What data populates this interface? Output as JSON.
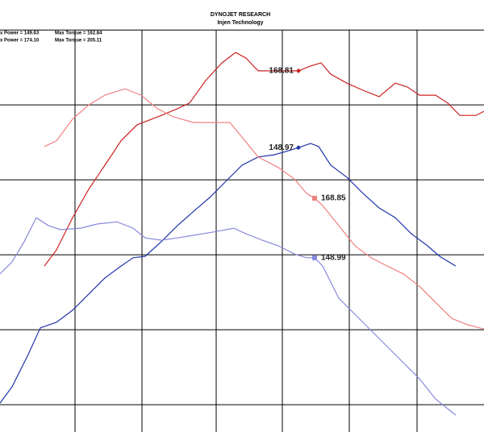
{
  "chart_data": {
    "type": "line",
    "title": "DYNOJET RESEARCH",
    "subtitle": "Injen Technology",
    "header_lines": [
      [
        "x Power = 149.63",
        "Max Torque = 162.84"
      ],
      [
        "x Power = 174.10",
        "Max Torque = 205.11"
      ]
    ],
    "xlim": [
      0,
      600
    ],
    "ylim": [
      72.7,
      188
    ],
    "xgrid": [
      93,
      176,
      268,
      350,
      433,
      517
    ],
    "ygrid": [
      80,
      100,
      120,
      140,
      160,
      180
    ],
    "series": [
      {
        "color": "#cc2222",
        "x": [
          55,
          70,
          90,
          110,
          130,
          150,
          170,
          200,
          220,
          235,
          255,
          275,
          292,
          305,
          320,
          345,
          370,
          385,
          398,
          410,
          430,
          450,
          470,
          490,
          505,
          520,
          540,
          555,
          570,
          590,
          600
        ],
        "values": [
          117.0,
          121.3,
          129.9,
          137.5,
          143.9,
          150.4,
          154.7,
          157.2,
          159.0,
          160.5,
          166.5,
          171.2,
          174.0,
          172.5,
          169.1,
          169.1,
          169.1,
          170.4,
          171.2,
          168.2,
          165.8,
          163.9,
          162.2,
          165.8,
          164.8,
          162.6,
          162.6,
          160.5,
          157.2,
          157.2,
          158.3
        ]
      },
      {
        "color": "#2233aa",
        "x": [
          0,
          15,
          35,
          50,
          70,
          90,
          110,
          130,
          150,
          165,
          180,
          200,
          220,
          240,
          260,
          280,
          300,
          320,
          340,
          355,
          370,
          385,
          395,
          410,
          430,
          450,
          470,
          490,
          510,
          530,
          545,
          565
        ],
        "values": [
          80.4,
          84.8,
          93.4,
          100.5,
          102.0,
          105.2,
          109.5,
          113.8,
          117.0,
          119.2,
          119.6,
          123.5,
          127.8,
          131.6,
          135.3,
          139.6,
          143.9,
          146.1,
          146.7,
          147.6,
          148.6,
          149.7,
          148.9,
          143.9,
          140.7,
          136.4,
          132.5,
          129.9,
          125.6,
          122.4,
          119.6,
          117.0
        ]
      },
      {
        "color": "#f08080",
        "x": [
          55,
          70,
          90,
          110,
          130,
          155,
          175,
          195,
          215,
          240,
          260,
          285,
          300,
          320,
          345,
          365,
          380,
          390,
          400,
          420,
          440,
          460,
          480,
          500,
          520,
          540,
          560,
          580,
          600
        ],
        "values": [
          148.9,
          150.4,
          156.2,
          160.0,
          162.6,
          164.3,
          162.6,
          159.0,
          156.8,
          155.3,
          155.3,
          155.3,
          151.4,
          146.1,
          143.3,
          140.2,
          136.4,
          135.1,
          133.1,
          127.8,
          122.4,
          119.2,
          117.0,
          114.9,
          111.6,
          107.3,
          103.0,
          101.3,
          100.2
        ]
      },
      {
        "color": "#8888dd",
        "x": [
          0,
          15,
          30,
          45,
          60,
          75,
          100,
          120,
          145,
          165,
          180,
          200,
          220,
          240,
          265,
          290,
          305,
          325,
          345,
          365,
          380,
          390,
          400,
          420,
          440,
          460,
          480,
          500,
          520,
          540,
          565
        ],
        "values": [
          114.9,
          118.1,
          123.5,
          129.9,
          127.8,
          126.7,
          127.1,
          128.2,
          128.8,
          127.1,
          124.5,
          123.9,
          124.5,
          125.2,
          126.1,
          127.1,
          125.6,
          123.9,
          122.4,
          120.2,
          119.2,
          119.2,
          117.0,
          108.4,
          104.1,
          99.8,
          95.5,
          91.2,
          86.9,
          81.5,
          77.2
        ]
      }
    ],
    "annotations": [
      {
        "text": "168.81",
        "x": 370,
        "y": 169.1
      },
      {
        "text": "148.97",
        "x": 370,
        "y": 148.6
      },
      {
        "text": "168.85",
        "x": 390,
        "y": 135.1
      },
      {
        "text": "148.99",
        "x": 390,
        "y": 119.2
      }
    ]
  }
}
